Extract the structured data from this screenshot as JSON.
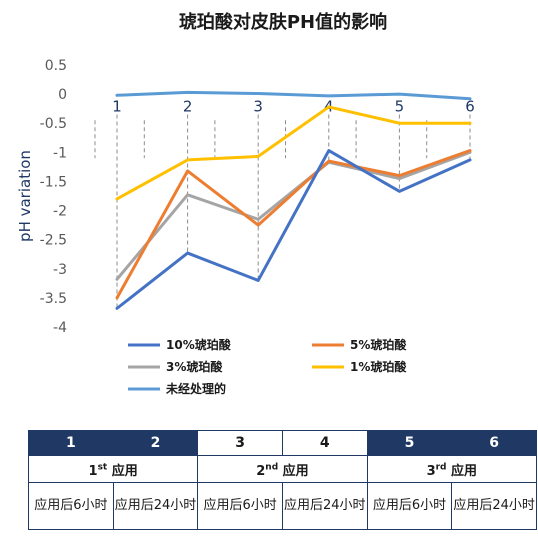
{
  "chart_data": {
    "type": "line",
    "title": "琥珀酸对皮肤PH值的影响",
    "ylabel": "pH variation",
    "xlabel": "",
    "x": [
      1,
      2,
      3,
      4,
      5,
      6
    ],
    "ylim": [
      -4,
      0.5
    ],
    "yticks": [
      "0.5",
      "0",
      "-0.5",
      "-1",
      "-1.5",
      "-2",
      "-2.5",
      "-3",
      "-3.5",
      "-4"
    ],
    "grid": false,
    "legend_position": "bottom",
    "series": [
      {
        "name": "10%琥珀酸",
        "color": "#4472c4",
        "values": [
          -3.68,
          -2.73,
          -3.2,
          -0.97,
          -1.67,
          -1.13
        ]
      },
      {
        "name": "5%琥珀酸",
        "color": "#ed7d31",
        "values": [
          -3.5,
          -1.32,
          -2.25,
          -1.15,
          -1.4,
          -0.97
        ]
      },
      {
        "name": "3%琥珀酸",
        "color": "#a5a5a5",
        "values": [
          -3.18,
          -1.73,
          -2.15,
          -1.17,
          -1.45,
          -1.0
        ]
      },
      {
        "name": "1%琥珀酸",
        "color": "#ffc000",
        "values": [
          -1.8,
          -1.13,
          -1.07,
          -0.22,
          -0.5,
          -0.5
        ]
      },
      {
        "name": "未经处理的",
        "color": "#5b9bd5",
        "values": [
          -0.02,
          0.03,
          0.01,
          -0.03,
          0.0,
          -0.08
        ]
      }
    ]
  },
  "schedule": {
    "numbers": [
      "1",
      "2",
      "3",
      "4",
      "5",
      "6"
    ],
    "applications": [
      {
        "ord": "1",
        "sup": "st",
        "label": "应用"
      },
      {
        "ord": "2",
        "sup": "nd",
        "label": "应用"
      },
      {
        "ord": "3",
        "sup": "rd",
        "label": "应用"
      }
    ],
    "times": [
      "应用后6小时",
      "应用后24小时",
      "应用后6小时",
      "应用后24小时",
      "应用后6小时",
      "应用后24小时"
    ]
  }
}
